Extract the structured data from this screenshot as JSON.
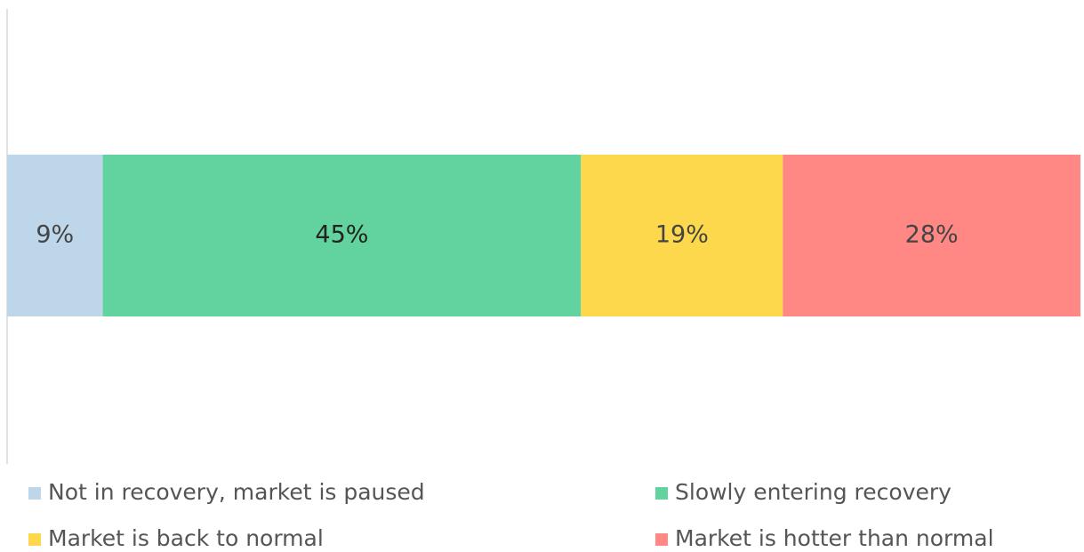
{
  "chart_data": {
    "type": "stacked-bar",
    "orientation": "horizontal",
    "series": [
      {
        "name": "Not in recovery, market is paused",
        "color": "#bed6ea",
        "values": [
          9
        ],
        "value_labels": [
          "9%"
        ]
      },
      {
        "name": "Slowly entering recovery",
        "color": "#62d39e",
        "values": [
          45
        ],
        "value_labels": [
          "45%"
        ]
      },
      {
        "name": "Market is back to normal",
        "color": "#fed84c",
        "values": [
          19
        ],
        "value_labels": [
          "19%"
        ]
      },
      {
        "name": "Market is hotter than normal",
        "color": "#ff8784",
        "values": [
          28
        ],
        "value_labels": [
          "28%"
        ]
      }
    ]
  }
}
